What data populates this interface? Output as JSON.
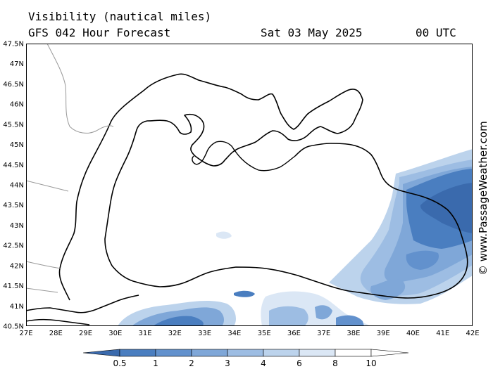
{
  "header": {
    "product": "Visibility (nautical miles)",
    "forecast": "GFS 042 Hour Forecast",
    "date": "Sat 03 May 2025",
    "time": "00 UTC"
  },
  "map": {
    "lat_labels": [
      "47.5N",
      "47N",
      "46.5N",
      "46N",
      "45.5N",
      "45N",
      "44.5N",
      "44N",
      "43.5N",
      "43N",
      "42.5N",
      "42N",
      "41.5N",
      "41N",
      "40.5N"
    ],
    "lon_labels": [
      "27E",
      "28E",
      "29E",
      "30E",
      "31E",
      "32E",
      "33E",
      "34E",
      "35E",
      "36E",
      "37E",
      "38E",
      "39E",
      "40E",
      "41E",
      "42E"
    ],
    "lat_range": [
      40.5,
      47.5
    ],
    "lon_range": [
      27,
      42
    ]
  },
  "legend": {
    "ticks": [
      "0.5",
      "1",
      "2",
      "3",
      "4",
      "6",
      "8",
      "10"
    ],
    "colors": [
      "#3a6aad",
      "#4a7ec0",
      "#6291cd",
      "#7fa7d8",
      "#9dbde3",
      "#bcd3ec",
      "#dbe7f5",
      "#ffffff"
    ]
  },
  "credit": "© www.PassageWeather.com"
}
